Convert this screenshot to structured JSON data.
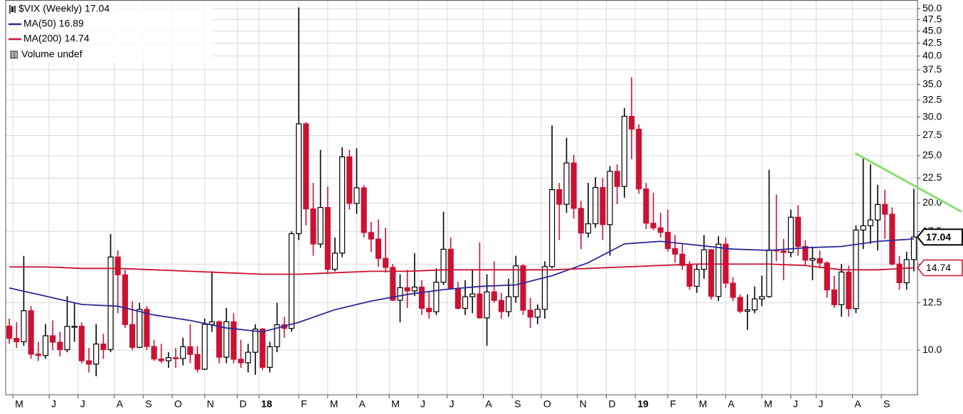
{
  "chart_data": {
    "type": "candlestick",
    "title": "$VIX (Weekly) 17.04",
    "volume_label": "Volume undef",
    "log_scale": true,
    "grid": true,
    "up_color": "#000000",
    "down_color": "#cc1133",
    "xlim": [
      -0.5,
      125.5
    ],
    "ylim": [
      8.1,
      52.1
    ],
    "yticks": [
      {
        "value": 10,
        "label": "10.0"
      },
      {
        "value": 12.5,
        "label": "12.5"
      },
      {
        "value": 15,
        "label": "15.0"
      },
      {
        "value": 17.5,
        "label": "17.5"
      },
      {
        "value": 20,
        "label": "20.0"
      },
      {
        "value": 22.5,
        "label": "22.5"
      },
      {
        "value": 25,
        "label": "25.0"
      },
      {
        "value": 27.5,
        "label": "27.5"
      },
      {
        "value": 30,
        "label": "30.0"
      },
      {
        "value": 32.5,
        "label": "32.5"
      },
      {
        "value": 35,
        "label": "35.0"
      },
      {
        "value": 37.5,
        "label": "37.5"
      },
      {
        "value": 40,
        "label": "40.0"
      },
      {
        "value": 42.5,
        "label": "42.5"
      },
      {
        "value": 45,
        "label": "45.0"
      },
      {
        "value": 47.5,
        "label": "47.5"
      },
      {
        "value": 50,
        "label": "50.0"
      }
    ],
    "xticks": [
      {
        "value": 0.5,
        "label": "M"
      },
      {
        "value": 5.5,
        "label": "J"
      },
      {
        "value": 9.5,
        "label": "J"
      },
      {
        "value": 14.5,
        "label": "A"
      },
      {
        "value": 18.5,
        "label": "S"
      },
      {
        "value": 22.5,
        "label": "O"
      },
      {
        "value": 27,
        "label": "N"
      },
      {
        "value": 31.5,
        "label": "D"
      },
      {
        "value": 34.5,
        "label": "18"
      },
      {
        "value": 40,
        "label": "F"
      },
      {
        "value": 44,
        "label": "M"
      },
      {
        "value": 48,
        "label": "A"
      },
      {
        "value": 52.5,
        "label": "M"
      },
      {
        "value": 56.5,
        "label": "J"
      },
      {
        "value": 60.5,
        "label": "J"
      },
      {
        "value": 65.5,
        "label": "A"
      },
      {
        "value": 69.5,
        "label": "S"
      },
      {
        "value": 73.5,
        "label": "O"
      },
      {
        "value": 78.5,
        "label": "N"
      },
      {
        "value": 82.5,
        "label": "D"
      },
      {
        "value": 86.5,
        "label": "19"
      },
      {
        "value": 91,
        "label": "F"
      },
      {
        "value": 95,
        "label": "M"
      },
      {
        "value": 99,
        "label": "A"
      },
      {
        "value": 104,
        "label": "M"
      },
      {
        "value": 108,
        "label": "J"
      },
      {
        "value": 111.5,
        "label": "J"
      },
      {
        "value": 116.5,
        "label": "A"
      },
      {
        "value": 120.5,
        "label": "S"
      }
    ],
    "candles": [
      [
        11.2,
        11.6,
        10.3,
        10.57
      ],
      [
        10.57,
        11.4,
        10.1,
        10.4
      ],
      [
        10.4,
        15.59,
        10.2,
        12.04
      ],
      [
        12.04,
        12.3,
        9.6,
        9.81
      ],
      [
        9.81,
        10.4,
        9.5,
        9.75
      ],
      [
        9.75,
        11.3,
        9.6,
        10.7
      ],
      [
        10.7,
        11.5,
        10.0,
        10.38
      ],
      [
        10.38,
        10.9,
        9.7,
        10.02
      ],
      [
        10.02,
        12.9,
        9.9,
        11.18
      ],
      [
        11.18,
        12.5,
        10.4,
        11.19
      ],
      [
        11.19,
        11.4,
        9.4,
        9.51
      ],
      [
        9.51,
        10.1,
        9.0,
        9.36
      ],
      [
        9.36,
        11.3,
        8.84,
        10.29
      ],
      [
        10.29,
        10.8,
        9.6,
        10.03
      ],
      [
        10.03,
        17.28,
        9.9,
        15.51
      ],
      [
        15.51,
        16.0,
        11.9,
        14.26
      ],
      [
        14.26,
        14.6,
        11.1,
        11.28
      ],
      [
        11.28,
        12.6,
        10.0,
        10.13
      ],
      [
        10.13,
        12.5,
        10.1,
        12.12
      ],
      [
        12.12,
        12.3,
        10.0,
        10.17
      ],
      [
        10.17,
        10.5,
        9.5,
        9.59
      ],
      [
        9.59,
        10.3,
        9.4,
        9.51
      ],
      [
        9.51,
        9.9,
        9.2,
        9.65
      ],
      [
        9.65,
        10.1,
        9.2,
        9.61
      ],
      [
        9.61,
        10.6,
        9.3,
        10.16
      ],
      [
        10.16,
        11.3,
        9.4,
        9.8
      ],
      [
        9.8,
        10.2,
        9.0,
        9.14
      ],
      [
        9.14,
        11.6,
        9.1,
        11.29
      ],
      [
        11.29,
        14.5,
        10.9,
        11.43
      ],
      [
        11.43,
        11.5,
        9.4,
        9.67
      ],
      [
        9.67,
        12.2,
        9.4,
        11.43
      ],
      [
        11.43,
        11.9,
        9.4,
        9.58
      ],
      [
        9.58,
        10.5,
        9.2,
        9.42
      ],
      [
        9.42,
        10.3,
        9.0,
        9.9
      ],
      [
        9.9,
        11.3,
        8.9,
        11.04
      ],
      [
        11.04,
        11.1,
        9.1,
        9.22
      ],
      [
        9.22,
        10.4,
        9.0,
        10.16
      ],
      [
        10.16,
        12.5,
        9.9,
        11.27
      ],
      [
        11.27,
        11.7,
        10.6,
        11.08
      ],
      [
        11.08,
        17.5,
        10.9,
        17.31
      ],
      [
        17.31,
        50.3,
        16.8,
        29.06
      ],
      [
        29.06,
        29.3,
        18.0,
        19.46
      ],
      [
        19.46,
        22.0,
        15.6,
        16.49
      ],
      [
        16.49,
        25.7,
        16.2,
        19.59
      ],
      [
        19.59,
        21.6,
        14.3,
        14.64
      ],
      [
        14.64,
        17.0,
        14.5,
        15.8
      ],
      [
        15.8,
        26.0,
        15.5,
        24.87
      ],
      [
        24.87,
        25.7,
        19.4,
        19.97
      ],
      [
        19.97,
        25.9,
        19.0,
        21.49
      ],
      [
        21.49,
        21.8,
        17.0,
        17.41
      ],
      [
        17.41,
        18.3,
        15.9,
        16.88
      ],
      [
        16.88,
        18.5,
        14.8,
        15.41
      ],
      [
        15.41,
        17.8,
        14.4,
        14.77
      ],
      [
        14.77,
        15.0,
        12.6,
        12.65
      ],
      [
        12.65,
        14.3,
        11.4,
        13.42
      ],
      [
        13.42,
        14.6,
        12.2,
        13.22
      ],
      [
        13.22,
        15.8,
        12.9,
        13.46
      ],
      [
        13.46,
        13.9,
        11.8,
        12.18
      ],
      [
        12.18,
        13.2,
        11.6,
        11.98
      ],
      [
        11.98,
        14.7,
        11.8,
        13.77
      ],
      [
        13.77,
        19.2,
        13.6,
        16.09
      ],
      [
        16.09,
        17.0,
        13.3,
        13.37
      ],
      [
        13.37,
        13.8,
        12.1,
        12.18
      ],
      [
        12.18,
        13.9,
        11.8,
        12.86
      ],
      [
        12.86,
        14.6,
        11.9,
        13.03
      ],
      [
        13.03,
        16.6,
        11.6,
        11.64
      ],
      [
        11.64,
        14.3,
        10.2,
        13.16
      ],
      [
        13.16,
        15.2,
        12.5,
        12.64
      ],
      [
        12.64,
        13.1,
        11.6,
        11.99
      ],
      [
        11.99,
        14.0,
        11.7,
        12.86
      ],
      [
        12.86,
        15.6,
        12.5,
        14.88
      ],
      [
        14.88,
        15.0,
        11.8,
        12.07
      ],
      [
        12.07,
        12.8,
        11.1,
        11.68
      ],
      [
        11.68,
        12.4,
        11.3,
        12.12
      ],
      [
        12.12,
        15.2,
        11.6,
        14.82
      ],
      [
        14.82,
        28.84,
        14.7,
        21.31
      ],
      [
        21.31,
        22.0,
        16.8,
        19.89
      ],
      [
        19.89,
        27.2,
        19.1,
        24.16
      ],
      [
        24.16,
        25.1,
        18.6,
        19.51
      ],
      [
        19.51,
        20.2,
        16.1,
        17.36
      ],
      [
        17.36,
        22.0,
        17.0,
        18.14
      ],
      [
        18.14,
        22.6,
        17.8,
        21.52
      ],
      [
        21.52,
        22.5,
        16.8,
        18.07
      ],
      [
        18.07,
        23.8,
        15.6,
        23.23
      ],
      [
        23.23,
        24.0,
        19.9,
        21.63
      ],
      [
        21.63,
        31.3,
        20.5,
        30.11
      ],
      [
        30.11,
        36.2,
        24.6,
        28.34
      ],
      [
        28.34,
        29.0,
        20.9,
        21.38
      ],
      [
        21.38,
        22.0,
        17.7,
        18.19
      ],
      [
        18.19,
        21.0,
        17.6,
        17.8
      ],
      [
        17.8,
        19.1,
        17.0,
        17.42
      ],
      [
        17.42,
        19.4,
        15.9,
        16.14
      ],
      [
        16.14,
        17.2,
        15.1,
        15.72
      ],
      [
        15.72,
        16.5,
        14.6,
        14.91
      ],
      [
        14.91,
        15.2,
        13.3,
        13.51
      ],
      [
        13.51,
        15.0,
        13.1,
        14.63
      ],
      [
        14.63,
        17.2,
        14.0,
        16.05
      ],
      [
        16.05,
        16.1,
        12.7,
        12.88
      ],
      [
        12.88,
        17.1,
        12.6,
        16.48
      ],
      [
        16.48,
        17.0,
        13.4,
        13.71
      ],
      [
        13.71,
        14.1,
        12.6,
        12.82
      ],
      [
        12.82,
        13.0,
        11.9,
        12.01
      ],
      [
        12.01,
        13.0,
        11.0,
        12.09
      ],
      [
        12.09,
        13.5,
        11.9,
        12.73
      ],
      [
        12.73,
        14.2,
        12.3,
        12.87
      ],
      [
        12.87,
        23.4,
        12.8,
        16.04
      ],
      [
        16.04,
        20.8,
        15.2,
        15.96
      ],
      [
        15.96,
        16.9,
        13.9,
        15.85
      ],
      [
        15.85,
        19.4,
        15.5,
        18.71
      ],
      [
        18.71,
        19.8,
        15.6,
        16.3
      ],
      [
        16.3,
        16.8,
        14.9,
        15.28
      ],
      [
        15.28,
        16.3,
        13.9,
        15.4
      ],
      [
        15.4,
        16.0,
        14.7,
        15.08
      ],
      [
        15.08,
        15.2,
        12.8,
        13.28
      ],
      [
        13.28,
        14.2,
        12.2,
        12.39
      ],
      [
        12.39,
        15.0,
        11.7,
        14.45
      ],
      [
        14.45,
        14.9,
        11.7,
        12.16
      ],
      [
        12.16,
        18.0,
        11.9,
        17.61
      ],
      [
        17.61,
        24.8,
        16.1,
        17.97
      ],
      [
        17.97,
        24.0,
        16.5,
        18.47
      ],
      [
        18.47,
        21.8,
        16.0,
        19.87
      ],
      [
        19.87,
        21.3,
        16.9,
        18.98
      ],
      [
        18.98,
        19.6,
        14.9,
        15.0
      ],
      [
        15.0,
        15.6,
        13.3,
        13.74
      ],
      [
        13.74,
        15.9,
        13.3,
        15.32
      ],
      [
        15.32,
        21.4,
        14.5,
        17.04
      ]
    ],
    "series": [
      {
        "name": "MA(50) 16.89",
        "color": "#2a2a9a",
        "x": [
          0,
          5,
          10,
          15,
          20,
          25,
          30,
          35,
          40,
          45,
          50,
          55,
          60,
          65,
          70,
          75,
          80,
          85,
          90,
          95,
          100,
          105,
          110,
          115,
          120,
          125
        ],
        "values": [
          13.4,
          12.9,
          12.4,
          12.3,
          11.8,
          11.5,
          11.1,
          10.9,
          11.4,
          12.1,
          12.6,
          13.0,
          13.3,
          13.5,
          13.6,
          14.2,
          15.1,
          16.5,
          16.7,
          16.4,
          16.1,
          16.0,
          16.2,
          16.3,
          16.7,
          16.89
        ]
      },
      {
        "name": "MA(200) 14.74",
        "color": "#cc1133",
        "x": [
          0,
          5,
          10,
          15,
          20,
          25,
          30,
          35,
          40,
          45,
          50,
          55,
          60,
          65,
          70,
          75,
          80,
          85,
          90,
          95,
          100,
          105,
          110,
          115,
          120,
          125
        ],
        "values": [
          14.8,
          14.8,
          14.7,
          14.7,
          14.6,
          14.5,
          14.4,
          14.3,
          14.3,
          14.4,
          14.5,
          14.5,
          14.6,
          14.6,
          14.6,
          14.6,
          14.7,
          14.8,
          14.9,
          15.0,
          15.0,
          15.0,
          14.9,
          14.6,
          14.6,
          14.74
        ]
      }
    ],
    "price_flags": [
      {
        "value": 17.04,
        "color": "#000000"
      },
      {
        "value": 14.74,
        "color": "#cc1133"
      }
    ],
    "trendline": {
      "x": [
        116.9,
        131.6
      ],
      "values": [
        25.3,
        19.2
      ],
      "color": "#88e070"
    }
  }
}
